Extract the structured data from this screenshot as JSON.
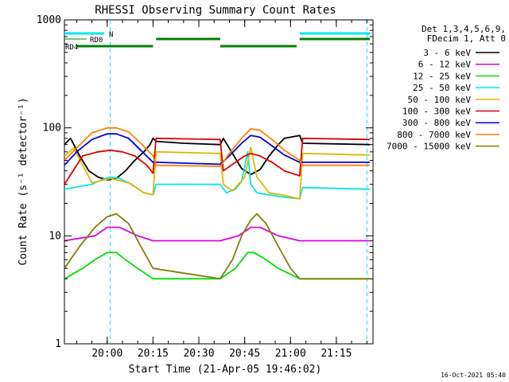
{
  "chart_data": {
    "type": "line",
    "title": "RHESSI Observing Summary Count Rates",
    "xlabel": "Start Time (21-Apr-05 19:46:02)",
    "ylabel": "Count Rate (s⁻¹ detector⁻¹)",
    "timestamp": "16-Oct-2021 05:40",
    "y_scale": "log",
    "ylim": [
      1,
      1000
    ],
    "xlim": [
      "19:46",
      "21:27"
    ],
    "x_ticks": [
      "20:00",
      "20:15",
      "20:30",
      "20:45",
      "21:00",
      "21:15"
    ],
    "y_ticks": [
      "1",
      "10",
      "100",
      "1000"
    ],
    "legend_header": [
      "Det 1,3,4,5,6,9,",
      "FDecim 1, Att 0"
    ],
    "legend_position": "right",
    "series": [
      {
        "name": "3 - 6 keV",
        "color": "#000000",
        "points": [
          [
            "19:46",
            70
          ],
          [
            "19:48",
            80
          ],
          [
            "19:51",
            55
          ],
          [
            "19:54",
            40
          ],
          [
            "19:57",
            35
          ],
          [
            "20:00",
            33
          ],
          [
            "20:03",
            34
          ],
          [
            "20:06",
            40
          ],
          [
            "20:09",
            50
          ],
          [
            "20:12",
            60
          ],
          [
            "20:14",
            70
          ],
          [
            "20:15",
            80
          ],
          [
            "20:16",
            75
          ],
          [
            "20:25",
            72
          ],
          [
            "20:37",
            70
          ],
          [
            "20:38",
            80
          ],
          [
            "20:41",
            58
          ],
          [
            "20:44",
            42
          ],
          [
            "20:47",
            37
          ],
          [
            "20:50",
            41
          ],
          [
            "20:53",
            55
          ],
          [
            "20:56",
            70
          ],
          [
            "20:58",
            80
          ],
          [
            "21:03",
            85
          ],
          [
            "21:04",
            72
          ],
          [
            "21:26",
            70
          ]
        ]
      },
      {
        "name": "6 - 12 keV",
        "color": "#e000e0",
        "points": [
          [
            "19:46",
            9
          ],
          [
            "19:56",
            10
          ],
          [
            "20:00",
            12
          ],
          [
            "20:04",
            12
          ],
          [
            "20:10",
            10
          ],
          [
            "20:15",
            9
          ],
          [
            "20:37",
            9
          ],
          [
            "20:43",
            10
          ],
          [
            "20:47",
            12
          ],
          [
            "20:50",
            12
          ],
          [
            "20:56",
            10
          ],
          [
            "21:03",
            9
          ],
          [
            "21:26",
            9
          ]
        ]
      },
      {
        "name": "12 - 25 keV",
        "color": "#00e000",
        "points": [
          [
            "19:46",
            4
          ],
          [
            "19:52",
            5
          ],
          [
            "19:56",
            6
          ],
          [
            "20:00",
            7
          ],
          [
            "20:03",
            7
          ],
          [
            "20:06",
            6
          ],
          [
            "20:10",
            5
          ],
          [
            "20:15",
            4
          ],
          [
            "20:37",
            4
          ],
          [
            "20:42",
            5
          ],
          [
            "20:46",
            7
          ],
          [
            "20:48",
            7
          ],
          [
            "20:52",
            6
          ],
          [
            "20:56",
            5
          ],
          [
            "21:03",
            4
          ],
          [
            "21:26",
            4
          ]
        ]
      },
      {
        "name": "25 - 50 keV",
        "color": "#00e8e8",
        "points": [
          [
            "19:46",
            27
          ],
          [
            "19:55",
            30
          ],
          [
            "19:58",
            33
          ],
          [
            "20:01",
            35
          ],
          [
            "20:04",
            34
          ],
          [
            "20:08",
            30
          ],
          [
            "20:12",
            25
          ],
          [
            "20:15",
            24
          ],
          [
            "20:16",
            30
          ],
          [
            "20:37",
            30
          ],
          [
            "20:39",
            25
          ],
          [
            "20:42",
            27
          ],
          [
            "20:44",
            32
          ],
          [
            "20:46",
            60
          ],
          [
            "20:47",
            30
          ],
          [
            "20:49",
            25
          ],
          [
            "20:53",
            24
          ],
          [
            "20:57",
            23
          ],
          [
            "21:03",
            22
          ],
          [
            "21:04",
            28
          ],
          [
            "21:26",
            27
          ]
        ]
      },
      {
        "name": "50 - 100 keV",
        "color": "#e0b800",
        "points": [
          [
            "19:46",
            55
          ],
          [
            "19:49",
            65
          ],
          [
            "19:55",
            31
          ],
          [
            "20:01",
            34
          ],
          [
            "20:07",
            31
          ],
          [
            "20:12",
            25
          ],
          [
            "20:15",
            24
          ],
          [
            "20:16",
            60
          ],
          [
            "20:37",
            58
          ],
          [
            "20:38",
            30
          ],
          [
            "20:41",
            26
          ],
          [
            "20:45",
            35
          ],
          [
            "20:47",
            66
          ],
          [
            "20:49",
            35
          ],
          [
            "20:53",
            25
          ],
          [
            "20:57",
            24
          ],
          [
            "21:03",
            22
          ],
          [
            "21:04",
            58
          ],
          [
            "21:26",
            56
          ]
        ]
      },
      {
        "name": "100 - 300 keV",
        "color": "#e00000",
        "points": [
          [
            "19:46",
            30
          ],
          [
            "19:52",
            55
          ],
          [
            "19:57",
            60
          ],
          [
            "20:01",
            62
          ],
          [
            "20:05",
            60
          ],
          [
            "20:09",
            55
          ],
          [
            "20:13",
            45
          ],
          [
            "20:15",
            38
          ],
          [
            "20:16",
            80
          ],
          [
            "20:37",
            78
          ],
          [
            "20:38",
            40
          ],
          [
            "20:42",
            48
          ],
          [
            "20:45",
            55
          ],
          [
            "20:47",
            58
          ],
          [
            "20:50",
            55
          ],
          [
            "20:54",
            48
          ],
          [
            "20:58",
            40
          ],
          [
            "21:03",
            36
          ],
          [
            "21:04",
            80
          ],
          [
            "21:26",
            78
          ]
        ]
      },
      {
        "name": "300 - 800 keV",
        "color": "#0000e0",
        "points": [
          [
            "19:46",
            45
          ],
          [
            "19:50",
            60
          ],
          [
            "19:55",
            78
          ],
          [
            "20:00",
            88
          ],
          [
            "20:03",
            88
          ],
          [
            "20:07",
            80
          ],
          [
            "20:11",
            62
          ],
          [
            "20:15",
            48
          ],
          [
            "20:16",
            48
          ],
          [
            "20:37",
            46
          ],
          [
            "20:40",
            55
          ],
          [
            "20:44",
            72
          ],
          [
            "20:47",
            85
          ],
          [
            "20:50",
            82
          ],
          [
            "20:54",
            68
          ],
          [
            "20:58",
            56
          ],
          [
            "21:03",
            48
          ],
          [
            "21:26",
            48
          ]
        ]
      },
      {
        "name": "800 - 7000 keV",
        "color": "#ff8000",
        "points": [
          [
            "19:46",
            50
          ],
          [
            "19:50",
            65
          ],
          [
            "19:55",
            90
          ],
          [
            "20:00",
            100
          ],
          [
            "20:03",
            100
          ],
          [
            "20:07",
            92
          ],
          [
            "20:11",
            72
          ],
          [
            "20:15",
            55
          ],
          [
            "20:16",
            45
          ],
          [
            "20:37",
            44
          ],
          [
            "20:40",
            58
          ],
          [
            "20:44",
            80
          ],
          [
            "20:47",
            98
          ],
          [
            "20:50",
            95
          ],
          [
            "20:54",
            78
          ],
          [
            "20:58",
            62
          ],
          [
            "21:03",
            50
          ],
          [
            "21:04",
            45
          ],
          [
            "21:26",
            45
          ]
        ]
      },
      {
        "name": "7000 - 15000 keV",
        "color": "#808000",
        "points": [
          [
            "19:46",
            5
          ],
          [
            "19:51",
            8
          ],
          [
            "19:56",
            12
          ],
          [
            "20:00",
            15
          ],
          [
            "20:03",
            16
          ],
          [
            "20:07",
            13
          ],
          [
            "20:11",
            8
          ],
          [
            "20:15",
            5
          ],
          [
            "20:37",
            4
          ],
          [
            "20:41",
            6
          ],
          [
            "20:44",
            10
          ],
          [
            "20:47",
            14
          ],
          [
            "20:49",
            16
          ],
          [
            "20:52",
            13
          ],
          [
            "20:56",
            8
          ],
          [
            "21:00",
            5
          ],
          [
            "21:03",
            4
          ],
          [
            "21:26",
            4
          ]
        ]
      }
    ],
    "flags": [
      {
        "label": "N",
        "color": "#00e8e8",
        "segments": [
          [
            "19:46",
            "19:59"
          ],
          [
            "21:03",
            "21:26"
          ]
        ]
      },
      {
        "label": "RD0",
        "color": "#008000",
        "segments": [
          [
            "20:16",
            "20:37"
          ],
          [
            "21:03",
            "21:26"
          ]
        ]
      },
      {
        "label": "RD4",
        "color": "#008000",
        "segments": [
          [
            "19:50",
            "20:15"
          ],
          [
            "20:37",
            "21:02"
          ]
        ]
      }
    ],
    "vertical_markers": [
      "20:01",
      "21:25"
    ]
  }
}
